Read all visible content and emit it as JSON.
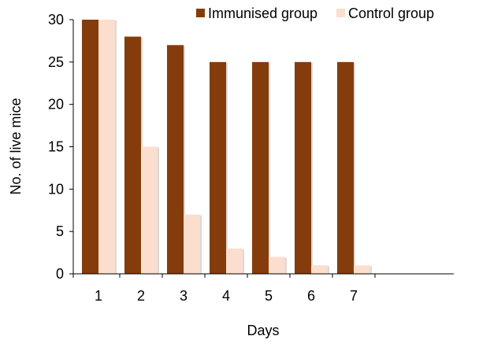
{
  "chart_data": {
    "type": "bar",
    "title": "",
    "xlabel": "Days",
    "ylabel": "No. of live mice",
    "categories": [
      "1",
      "2",
      "3",
      "4",
      "5",
      "6",
      "7"
    ],
    "series": [
      {
        "name": "Immunised group",
        "color": "#843C0C",
        "values": [
          30,
          28,
          27,
          25,
          25,
          25,
          25
        ]
      },
      {
        "name": "Control group",
        "color": "#FBDECE",
        "values": [
          30,
          15,
          7,
          3,
          2,
          1,
          1
        ]
      }
    ],
    "ylim": [
      0,
      30
    ],
    "yticks": [
      "0",
      "5",
      "10",
      "15",
      "20",
      "25",
      "30"
    ],
    "grid": false,
    "legend_position": "top-right"
  }
}
